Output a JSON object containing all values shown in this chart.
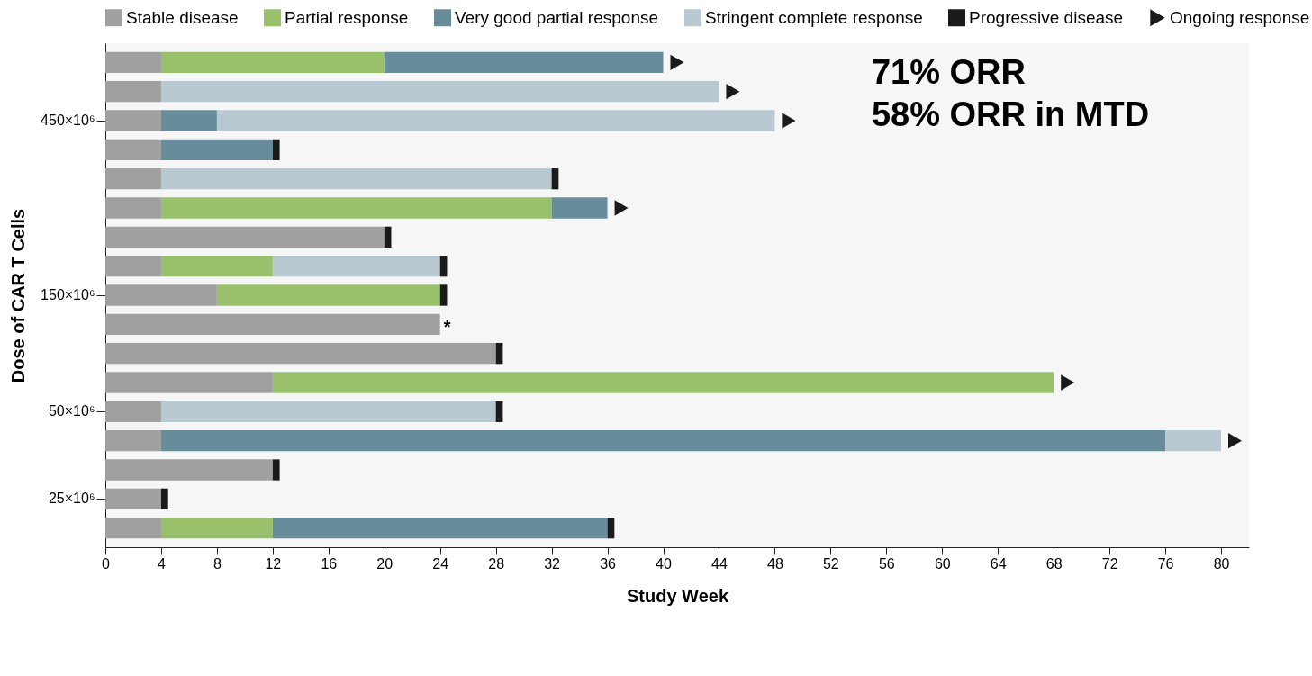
{
  "chart_data": {
    "type": "bar",
    "orientation": "horizontal",
    "stacked": true,
    "xlabel": "Study Week",
    "ylabel": "Dose of CAR T Cells",
    "categories": [
      null,
      null,
      "450×10⁶",
      null,
      null,
      null,
      null,
      null,
      "150×10⁶",
      null,
      null,
      null,
      "50×10⁶",
      null,
      null,
      "25×10⁶",
      null
    ],
    "xlim": [
      0,
      82
    ],
    "xticks": [
      0,
      4,
      8,
      12,
      16,
      20,
      24,
      28,
      32,
      36,
      40,
      44,
      48,
      52,
      56,
      60,
      64,
      68,
      72,
      76,
      80
    ],
    "grid": false,
    "legend": "top",
    "annotations": [
      "71% ORR",
      "58% ORR in MTD"
    ],
    "series": [
      {
        "name": "Stable disease",
        "color": "#a0a0a0",
        "values": [
          4,
          4,
          4,
          4,
          4,
          4,
          20,
          4,
          8,
          24,
          28,
          12,
          4,
          4,
          12,
          4,
          4
        ],
        "value_labels": [
          null,
          null,
          null,
          null,
          null,
          null,
          null,
          null,
          null,
          "*",
          null,
          null,
          null,
          null,
          null,
          null,
          null
        ]
      },
      {
        "name": "Partial response",
        "color": "#99c16b",
        "values": [
          16,
          null,
          null,
          null,
          null,
          28,
          null,
          8,
          16,
          null,
          null,
          56,
          null,
          null,
          null,
          null,
          8
        ]
      },
      {
        "name": "Very good partial response",
        "color": "#678c9b",
        "values": [
          20,
          null,
          4,
          8,
          null,
          4,
          null,
          null,
          null,
          null,
          null,
          null,
          null,
          72,
          null,
          null,
          24
        ]
      },
      {
        "name": "Stringent complete response",
        "color": "#b8c9d1",
        "values": [
          null,
          40,
          40,
          null,
          28,
          null,
          null,
          12,
          null,
          null,
          null,
          null,
          24,
          4,
          null,
          null,
          null
        ]
      },
      {
        "name": "Progressive disease",
        "color": "#1a1a1a",
        "values": [
          null,
          null,
          null,
          0.5,
          0.5,
          null,
          0.5,
          0.5,
          0.5,
          null,
          0.5,
          null,
          0.5,
          null,
          0.5,
          0.5,
          0.5
        ]
      },
      {
        "name": "Ongoing response",
        "type": "scatter",
        "marker": "triangle",
        "color": "#1a1a1a",
        "values": [
          41,
          45,
          49,
          null,
          null,
          37,
          null,
          null,
          null,
          null,
          null,
          69,
          null,
          81,
          null,
          null,
          null
        ]
      }
    ]
  }
}
